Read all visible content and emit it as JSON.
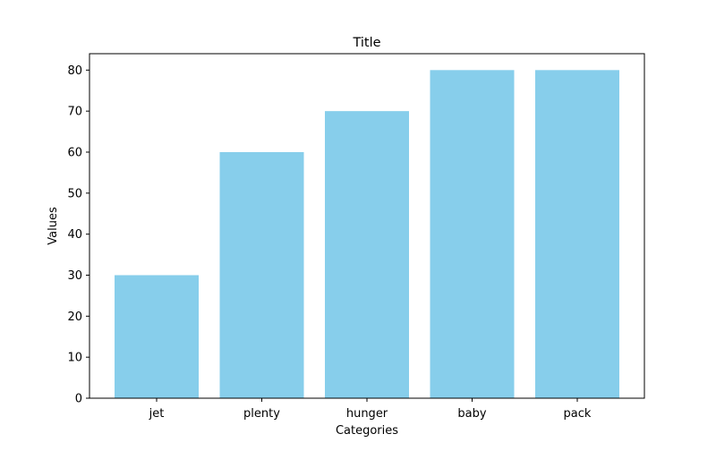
{
  "chart_data": {
    "type": "bar",
    "title": "Title",
    "xlabel": "Categories",
    "ylabel": "Values",
    "categories": [
      "jet",
      "plenty",
      "hunger",
      "baby",
      "pack"
    ],
    "values": [
      30,
      60,
      70,
      80,
      80
    ],
    "ylim": [
      0,
      84
    ],
    "yticks": [
      0,
      10,
      20,
      30,
      40,
      50,
      60,
      70,
      80
    ],
    "grid": false,
    "bar_color": "#87CEEB",
    "axis_color": "#000000"
  }
}
